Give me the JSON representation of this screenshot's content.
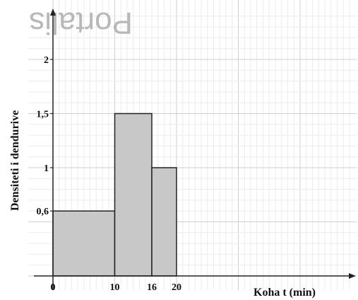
{
  "chart_data": {
    "type": "bar",
    "title": "",
    "xlabel": "Koha t (min)",
    "ylabel": "Densiteti i dendurive",
    "bins": [
      {
        "from": 0,
        "to": 10,
        "value": 0.6
      },
      {
        "from": 10,
        "to": 16,
        "value": 1.5
      },
      {
        "from": 16,
        "to": 20,
        "value": 1
      }
    ],
    "x_ticks": [
      {
        "value": 0,
        "label": "0"
      },
      {
        "value": 10,
        "label": "10"
      },
      {
        "value": 16,
        "label": "16"
      },
      {
        "value": 20,
        "label": "20"
      }
    ],
    "y_ticks": [
      {
        "value": 0.6,
        "label": "0,6"
      },
      {
        "value": 1,
        "label": "1"
      },
      {
        "value": 1.5,
        "label": "1,5"
      },
      {
        "value": 2,
        "label": "2"
      }
    ],
    "xlim": [
      0,
      48
    ],
    "ylim": [
      0,
      2.4
    ],
    "grid": true,
    "bar_color": "#c8c8c8",
    "watermark": "Portalis"
  }
}
